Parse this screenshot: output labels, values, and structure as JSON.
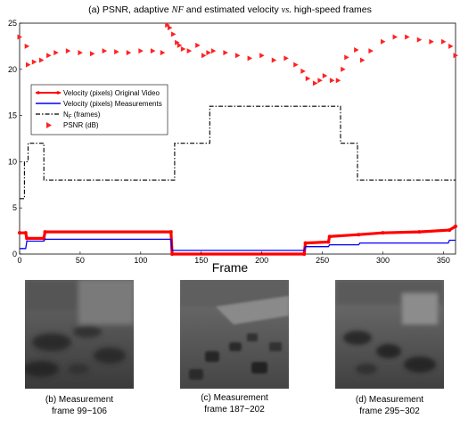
{
  "figure": {
    "title_prefix": "(a) PSNR,  adaptive ",
    "title_nf": "NF",
    "title_mid": " and estimated velocity ",
    "title_vs": "vs.",
    "title_suffix": " high-speed frames",
    "xlabel": "Frame"
  },
  "chart_data": {
    "type": "line",
    "title": "(a) PSNR, adaptive NF and estimated velocity vs. high-speed frames",
    "xlabel": "Frame",
    "ylabel": "",
    "xlim": [
      0,
      360
    ],
    "ylim": [
      0,
      25
    ],
    "xticks": [
      0,
      50,
      100,
      150,
      200,
      250,
      300,
      350
    ],
    "yticks": [
      0,
      5,
      10,
      15,
      20,
      25
    ],
    "grid": false,
    "legend_position": "upper-left",
    "series": [
      {
        "name": "Velocity (pixels) Original Video",
        "color": "#ff0000",
        "style": "solid-thick-markers",
        "x": [
          0,
          5,
          6,
          20,
          21,
          125,
          126,
          235,
          236,
          255,
          256,
          280,
          300,
          330,
          355,
          360
        ],
        "y": [
          2.3,
          2.3,
          1.7,
          1.7,
          2.4,
          2.4,
          0.0,
          0.0,
          1.2,
          1.3,
          1.9,
          2.1,
          2.3,
          2.4,
          2.6,
          3.0
        ]
      },
      {
        "name": "Velocity (pixels) Measurements",
        "color": "#0000ff",
        "style": "solid",
        "x": [
          0,
          5,
          6,
          20,
          21,
          125,
          126,
          235,
          236,
          255,
          256,
          280,
          281,
          354,
          355,
          360
        ],
        "y": [
          0.6,
          0.6,
          1.4,
          1.4,
          1.6,
          1.6,
          0.4,
          0.4,
          0.8,
          0.8,
          1.0,
          1.0,
          1.2,
          1.2,
          1.5,
          1.5
        ]
      },
      {
        "name": "N_F (frames)",
        "color": "#000000",
        "style": "dashdot",
        "x": [
          0,
          4,
          4,
          7,
          7,
          12,
          12,
          20,
          20,
          128,
          128,
          157,
          157,
          265,
          265,
          279,
          279,
          360
        ],
        "y": [
          6,
          6,
          10,
          10,
          12,
          12,
          12,
          12,
          8,
          8,
          12,
          12,
          16,
          16,
          12,
          12,
          8,
          8
        ]
      },
      {
        "name": "PSNR (dB)",
        "color": "#ff2222",
        "style": "triangle-markers",
        "x": [
          0,
          6,
          7,
          12,
          18,
          24,
          30,
          40,
          50,
          60,
          70,
          80,
          90,
          100,
          110,
          118,
          122,
          124,
          127,
          130,
          132,
          135,
          140,
          147,
          152,
          156,
          160,
          170,
          180,
          190,
          200,
          210,
          220,
          228,
          234,
          238,
          244,
          248,
          252,
          258,
          263,
          267,
          270,
          278,
          283,
          290,
          300,
          310,
          320,
          330,
          340,
          350,
          356,
          360
        ],
        "y": [
          23.5,
          22.5,
          20.5,
          20.8,
          21.0,
          21.5,
          21.8,
          22.0,
          21.8,
          21.7,
          22.0,
          21.9,
          21.8,
          22.0,
          22.0,
          21.8,
          24.8,
          24.5,
          23.8,
          22.9,
          22.6,
          22.2,
          22.0,
          22.6,
          21.5,
          21.8,
          22.0,
          21.8,
          21.5,
          21.2,
          21.5,
          21.0,
          21.2,
          20.5,
          19.8,
          19.0,
          18.5,
          18.8,
          19.3,
          18.8,
          18.8,
          20.0,
          21.3,
          22.1,
          21.0,
          22.0,
          23.0,
          23.5,
          23.5,
          23.2,
          23.0,
          23.0,
          22.5,
          21.5
        ]
      }
    ]
  },
  "panels": [
    {
      "caption_line1": "(b) Measurement",
      "caption_line2": "frame 99~106"
    },
    {
      "caption_line1": "(c) Measurement",
      "caption_line2": "frame 187~202"
    },
    {
      "caption_line1": "(d) Measurement",
      "caption_line2": "frame 295~302"
    }
  ]
}
